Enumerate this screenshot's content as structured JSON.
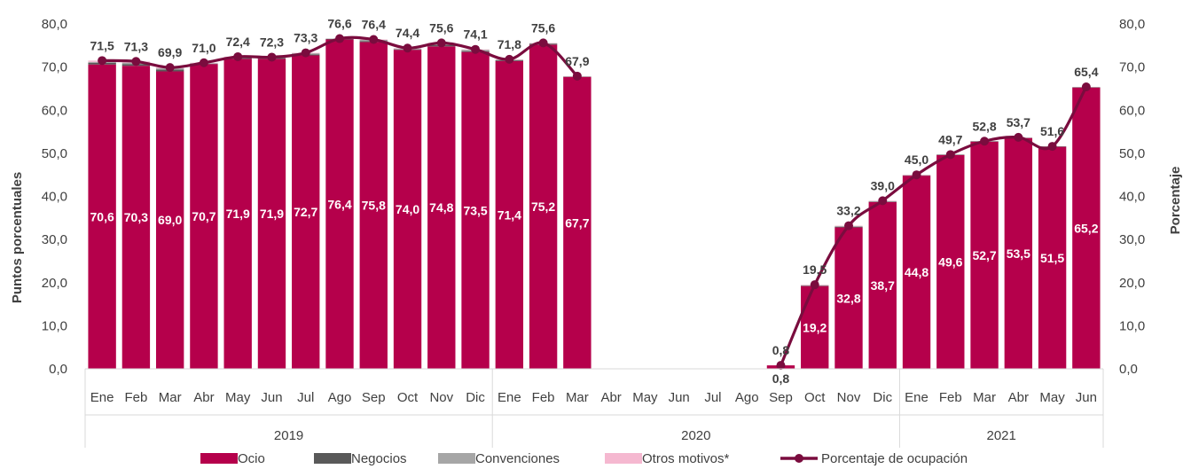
{
  "chart_data": {
    "type": "bar",
    "stacked": true,
    "categories": [
      "Ene",
      "Feb",
      "Mar",
      "Abr",
      "May",
      "Jun",
      "Jul",
      "Ago",
      "Sep",
      "Oct",
      "Nov",
      "Dic",
      "Ene",
      "Feb",
      "Mar",
      "Abr",
      "May",
      "Jun",
      "Jul",
      "Ago",
      "Sep",
      "Oct",
      "Nov",
      "Dic",
      "Ene",
      "Feb",
      "Mar",
      "Abr",
      "May",
      "Jun"
    ],
    "year_groups": [
      {
        "label": "2019",
        "start": 0,
        "end": 11
      },
      {
        "label": "2020",
        "start": 12,
        "end": 23
      },
      {
        "label": "2021",
        "start": 24,
        "end": 29
      }
    ],
    "series": [
      {
        "name": "Ocio",
        "type": "bar",
        "color": "#B5004B",
        "values": [
          70.6,
          70.3,
          69.0,
          70.7,
          71.9,
          71.9,
          72.7,
          76.4,
          75.8,
          74.0,
          74.8,
          73.5,
          71.4,
          75.2,
          67.7,
          null,
          null,
          null,
          null,
          null,
          0.8,
          19.2,
          32.8,
          38.7,
          44.8,
          49.6,
          52.7,
          53.5,
          51.5,
          65.2
        ],
        "labels": [
          "70,6",
          "70,3",
          "69,0",
          "70,7",
          "71,9",
          "71,9",
          "72,7",
          "76,4",
          "75,8",
          "74,0",
          "74,8",
          "73,5",
          "71,4",
          "75,2",
          "67,7",
          "",
          "",
          "",
          "",
          "",
          "0,8",
          "19,2",
          "32,8",
          "38,7",
          "44,8",
          "49,6",
          "52,7",
          "53,5",
          "51,5",
          "65,2"
        ]
      },
      {
        "name": "Negocios",
        "type": "bar",
        "color": "#595959",
        "values": [
          0.4,
          0.4,
          0.4,
          0.1,
          0.2,
          0.2,
          0.2,
          0.1,
          0.2,
          0.1,
          0.3,
          0.2,
          0.2,
          0.2,
          0.1,
          null,
          null,
          null,
          null,
          null,
          0.0,
          0.1,
          0.1,
          0.1,
          0.1,
          0.1,
          0.1,
          0.1,
          0.1,
          0.1
        ]
      },
      {
        "name": "Convenciones",
        "type": "bar",
        "color": "#A6A6A6",
        "values": [
          0.2,
          0.3,
          0.3,
          0.1,
          0.2,
          0.1,
          0.3,
          0.1,
          0.3,
          0.2,
          0.4,
          0.3,
          0.1,
          0.1,
          0.0,
          null,
          null,
          null,
          null,
          null,
          0.0,
          0.1,
          0.2,
          0.1,
          0.0,
          0.0,
          0.0,
          0.0,
          0.0,
          0.0
        ]
      },
      {
        "name": "Otros motivos*",
        "type": "bar",
        "color": "#F5B8D0",
        "values": [
          0.3,
          0.3,
          0.2,
          0.1,
          0.1,
          0.1,
          0.1,
          0.0,
          0.1,
          0.1,
          0.1,
          0.1,
          0.1,
          0.1,
          0.1,
          null,
          null,
          null,
          null,
          null,
          0.0,
          0.1,
          0.1,
          0.1,
          0.1,
          0.0,
          0.0,
          0.1,
          0.0,
          0.1
        ]
      },
      {
        "name": "Porcentaje de ocupación",
        "type": "line",
        "color": "#7A0C3E",
        "values": [
          71.5,
          71.3,
          69.9,
          71.0,
          72.4,
          72.3,
          73.3,
          76.6,
          76.4,
          74.4,
          75.6,
          74.1,
          71.8,
          75.6,
          67.9,
          null,
          null,
          null,
          null,
          null,
          0.8,
          19.5,
          33.2,
          39.0,
          45.0,
          49.7,
          52.8,
          53.7,
          51.6,
          65.4
        ],
        "labels": [
          "71,5",
          "71,3",
          "69,9",
          "71,0",
          "72,4",
          "72,3",
          "73,3",
          "76,6",
          "76,4",
          "74,4",
          "75,6",
          "74,1",
          "71,8",
          "75,6",
          "67,9",
          "",
          "",
          "",
          "",
          "",
          "0,8",
          "19,5",
          "33,2",
          "39,0",
          "45,0",
          "49,7",
          "52,8",
          "53,7",
          "51,6",
          "65,4"
        ]
      }
    ],
    "ylabel_left": "Puntos porcentuales",
    "ylabel_right": "Porcentaje",
    "ylim": [
      0,
      80
    ],
    "yticks": [
      "0,0",
      "10,0",
      "20,0",
      "30,0",
      "40,0",
      "50,0",
      "60,0",
      "70,0",
      "80,0"
    ],
    "grid": false,
    "legend_position": "bottom"
  }
}
